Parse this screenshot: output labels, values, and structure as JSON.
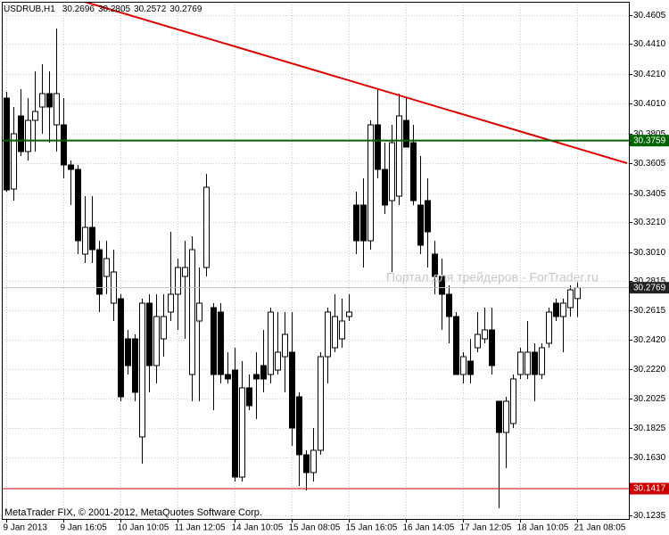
{
  "chart_data": {
    "type": "candlestick",
    "title": "USDRUB,H1",
    "footer": "MetaTrader FIX, © 2001-2012, MetaQuotes Software Corp.",
    "watermark": "Портал для трейдеров - ForTrader.ru",
    "categories": [
      "9 Jan 2013",
      null,
      null,
      null,
      null,
      null,
      null,
      null,
      "9 Jan 16:05",
      null,
      null,
      null,
      null,
      null,
      null,
      null,
      "10 Jan 10:05",
      null,
      null,
      null,
      null,
      null,
      null,
      null,
      "11 Jan 12:05",
      null,
      null,
      null,
      null,
      null,
      null,
      null,
      "14 Jan 10:05",
      null,
      null,
      null,
      null,
      null,
      null,
      null,
      "15 Jan 08:05",
      null,
      null,
      null,
      null,
      null,
      null,
      null,
      "15 Jan 16:05",
      null,
      null,
      null,
      null,
      null,
      null,
      null,
      "16 Jan 14:05",
      null,
      null,
      null,
      null,
      null,
      null,
      null,
      "17 Jan 12:05",
      null,
      null,
      null,
      null,
      null,
      null,
      null,
      "18 Jan 10:05",
      null,
      null,
      null,
      null,
      null,
      null,
      null,
      "21 Jan 08:05"
    ],
    "open": [
      30.4045,
      30.3433,
      30.3925,
      30.3685,
      30.3895,
      30.3985,
      30.4075,
      30.3865,
      30.3865,
      30.3595,
      30.3565,
      30.2995,
      30.3175,
      30.3025,
      30.2845,
      30.2665,
      30.2695,
      30.2425,
      30.2425,
      30.1765,
      30.2665,
      30.2245,
      30.2425,
      30.2605,
      30.2725,
      30.2845,
      30.2185,
      30.2545,
      30.2905,
      30.2635,
      30.2605,
      30.2185,
      30.2215,
      30.1495,
      30.2095,
      30.2185,
      30.2245,
      30.2185,
      30.2215,
      30.2305,
      30.2335,
      30.2035,
      30.1645,
      30.1525,
      30.1675,
      30.2305,
      30.2365,
      30.2425,
      30.2575,
      30.3325,
      30.3325,
      30.3085,
      30.3865,
      30.3565,
      30.3355,
      30.3385,
      30.3895,
      30.3745,
      30.3325,
      30.3355,
      30.2995,
      30.2845,
      30.2725,
      30.2575,
      30.2185,
      30.2275,
      30.2365,
      30.2425,
      30.2485,
      30.2005,
      30.1795,
      30.1855,
      30.2185,
      30.2185,
      30.2335,
      30.2185,
      30.2395,
      30.2665,
      30.2575,
      30.2635,
      30.2696
    ],
    "high": [
      30.4087,
      30.3985,
      30.4105,
      30.4045,
      30.4225,
      30.4273,
      30.4225,
      30.4513,
      30.4045,
      30.3625,
      30.3595,
      30.3385,
      30.3385,
      30.3085,
      30.3085,
      30.3025,
      30.2725,
      30.2485,
      30.2455,
      30.2695,
      30.2725,
      30.2725,
      30.2725,
      30.3145,
      30.2965,
      30.3085,
      30.3115,
      30.2905,
      30.3535,
      30.2665,
      30.2665,
      30.2335,
      30.2365,
      30.2275,
      30.2185,
      30.2335,
      30.2485,
      30.2635,
      30.2605,
      30.2605,
      30.2605,
      30.2065,
      30.1675,
      30.1825,
      30.2335,
      30.2635,
      30.2725,
      30.2695,
      30.2725,
      30.3415,
      30.3505,
      30.3895,
      30.4105,
      30.3745,
      30.3865,
      30.4075,
      30.4045,
      30.3865,
      30.3655,
      30.3505,
      30.3085,
      30.2965,
      30.2785,
      30.2605,
      30.2335,
      30.2425,
      30.2605,
      30.2635,
      30.2635,
      30.2005,
      30.2035,
      30.2185,
      30.2365,
      30.2545,
      30.2395,
      30.2395,
      30.2635,
      30.2695,
      30.2695,
      30.2785,
      30.2805
    ],
    "low": [
      30.3415,
      30.3355,
      30.3655,
      30.3625,
      30.3685,
      30.3805,
      30.3745,
      30.3685,
      30.3505,
      30.3325,
      30.2995,
      30.2935,
      30.2935,
      30.2605,
      30.2725,
      30.2545,
      30.2005,
      30.2185,
      30.2005,
      30.1585,
      30.2065,
      30.2125,
      30.2305,
      30.2545,
      30.2485,
      30.2425,
      30.2005,
      30.2005,
      30.2845,
      30.1945,
      30.2125,
      30.2125,
      30.1465,
      30.1465,
      30.1945,
      30.1885,
      30.2065,
      30.2125,
      30.2185,
      30.2065,
      30.1705,
      30.1435,
      30.1405,
      30.1465,
      30.1645,
      30.2125,
      30.2335,
      30.2365,
      30.2545,
      30.2995,
      30.2905,
      30.3025,
      30.3505,
      30.3265,
      30.2875,
      30.3325,
      30.3715,
      30.3325,
      30.2995,
      30.2905,
      30.2725,
      30.2485,
      30.2395,
      30.2185,
      30.2125,
      30.2125,
      30.2335,
      30.2395,
      30.2185,
      30.1285,
      30.1555,
      30.1825,
      30.2155,
      30.2155,
      30.2005,
      30.2155,
      30.2365,
      30.2545,
      30.2335,
      30.2575,
      30.2572
    ],
    "close": [
      30.3427,
      30.3805,
      30.3685,
      30.3895,
      30.3955,
      30.4075,
      30.3985,
      30.4075,
      30.3595,
      30.3565,
      30.3085,
      30.3175,
      30.3025,
      30.2725,
      30.2965,
      30.2875,
      30.2035,
      30.2245,
      30.2065,
      30.2665,
      30.2245,
      30.2575,
      30.2575,
      30.2725,
      30.2905,
      30.2905,
      30.3025,
      30.2665,
      30.3445,
      30.2185,
      30.2185,
      30.2155,
      30.1495,
      30.2095,
      30.1975,
      30.2155,
      30.2155,
      30.2605,
      30.2335,
      30.2455,
      30.1825,
      30.1645,
      30.1525,
      30.1675,
      30.2305,
      30.2605,
      30.2575,
      30.2545,
      30.2605,
      30.3085,
      30.3085,
      30.3865,
      30.3565,
      30.3325,
      30.3745,
      30.3925,
      30.3715,
      30.3355,
      30.3055,
      30.3145,
      30.2845,
      30.2725,
      30.2575,
      30.2185,
      30.2305,
      30.2185,
      30.2455,
      30.2485,
      30.2245,
      30.1795,
      30.2005,
      30.2155,
      30.2335,
      30.2335,
      30.2185,
      30.2365,
      30.2605,
      30.2575,
      30.2665,
      30.2755,
      30.2769
    ],
    "up_color": "#ffffff",
    "down_color": "#000000",
    "ylim": [
      30.1213,
      30.4693
    ],
    "yticks": [
      30.4605,
      {
        "value": 30.441,
        "label": "30.4410"
      },
      {
        "value": 30.421,
        "label": "30.4210"
      },
      {
        "value": 30.401,
        "label": "30.4010"
      },
      30.3805,
      30.3605,
      30.3405,
      {
        "value": 30.321,
        "label": "30.3210"
      },
      {
        "value": 30.301,
        "label": "30.3010"
      },
      30.2815,
      30.2615,
      {
        "value": 30.242,
        "label": "30.2420"
      },
      {
        "value": 30.222,
        "label": "30.2220"
      },
      30.2025,
      30.1825,
      {
        "value": 30.163,
        "label": "30.1630"
      },
      30.1235
    ],
    "grid": true,
    "hlines": [
      {
        "value": 30.3759,
        "color": "#006400"
      },
      {
        "value": 30.1417,
        "color": "#cc0000"
      }
    ],
    "bid_line_color": "#c0c0c0",
    "trendline": {
      "x": [
        11,
        87
      ],
      "y": [
        30.4693,
        30.3607
      ],
      "color": "#dd0000"
    }
  }
}
